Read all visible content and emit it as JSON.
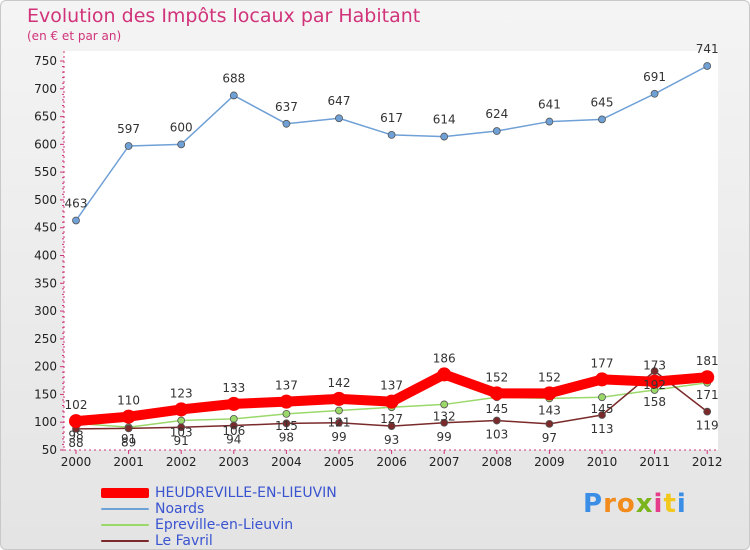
{
  "header": {
    "title": "Evolution des Impôts locaux par Habitant",
    "subtitle": "(en € et par an)"
  },
  "logo": {
    "text": "Proxiti",
    "letter_colors": [
      "#3a8ee6",
      "#f28b1c",
      "#f28b1c",
      "#7ab51d",
      "#e63c8c",
      "#f2c81c",
      "#3a8ee6"
    ]
  },
  "chart_data": {
    "type": "line",
    "x": [
      "2000",
      "2001",
      "2002",
      "2003",
      "2004",
      "2005",
      "2006",
      "2007",
      "2008",
      "2009",
      "2010",
      "2011",
      "2012"
    ],
    "ylim": [
      50,
      750
    ],
    "yticks": [
      50,
      100,
      150,
      200,
      250,
      300,
      350,
      400,
      450,
      500,
      550,
      600,
      650,
      700,
      750
    ],
    "grid": false,
    "legend_position": "bottom-left",
    "series": [
      {
        "name": "HEUDREVILLE-EN-LIEUVIN",
        "color": "#ff0000",
        "values": [
          102,
          110,
          123,
          133,
          137,
          142,
          137,
          186,
          152,
          152,
          177,
          173,
          181
        ],
        "labels": [
          "102",
          "110",
          "123",
          "133",
          "137",
          "142",
          "137",
          "186",
          "152",
          "152",
          "177",
          "173",
          "181"
        ]
      },
      {
        "name": "Noards",
        "color": "#6fa0d6",
        "values": [
          463,
          597,
          600,
          688,
          637,
          647,
          617,
          614,
          624,
          641,
          645,
          691,
          741
        ],
        "labels": [
          "463",
          "597",
          "600",
          "688",
          "637",
          "647",
          "617",
          "614",
          "624",
          "641",
          "645",
          "691",
          "741"
        ]
      },
      {
        "name": "Epreville-en-Lieuvin",
        "color": "#9ad86a",
        "values": [
          98,
          91,
          103,
          106,
          115,
          121,
          127,
          132,
          145,
          143,
          145,
          158,
          171
        ],
        "labels": [
          "98",
          "91",
          "103",
          "106",
          "115",
          "121",
          "127",
          "132",
          "145",
          "143",
          "145",
          "158",
          "171"
        ]
      },
      {
        "name": "Le Favril",
        "color": "#7a2a2a",
        "values": [
          88,
          89,
          91,
          94,
          98,
          99,
          93,
          99,
          103,
          97,
          113,
          192,
          119
        ],
        "labels": [
          "88",
          "89",
          "91",
          "94",
          "98",
          "99",
          "93",
          "99",
          "103",
          "97",
          "113",
          "192",
          "119"
        ]
      }
    ]
  }
}
